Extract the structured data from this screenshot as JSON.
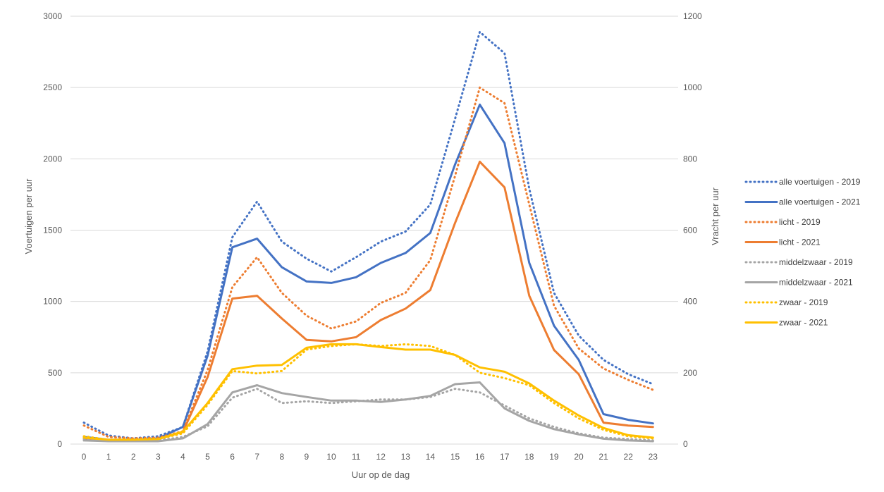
{
  "chart_data": {
    "type": "line",
    "xlabel": "Uur op de dag",
    "ylabel": "Voertuigen per uur",
    "y2label": "Vracht per uur",
    "x": [
      0,
      1,
      2,
      3,
      4,
      5,
      6,
      7,
      8,
      9,
      10,
      11,
      12,
      13,
      14,
      15,
      16,
      17,
      18,
      19,
      20,
      21,
      22,
      23
    ],
    "xticks": [
      "0",
      "1",
      "2",
      "3",
      "4",
      "5",
      "6",
      "7",
      "8",
      "9",
      "10",
      "11",
      "12",
      "13",
      "14",
      "15",
      "16",
      "17",
      "18",
      "19",
      "20",
      "21",
      "22",
      "23"
    ],
    "ylim": [
      0,
      3000
    ],
    "yticks": [
      "0",
      "500",
      "1000",
      "1500",
      "2000",
      "2500",
      "3000"
    ],
    "y2lim": [
      0,
      1200
    ],
    "y2ticks": [
      "0",
      "200",
      "400",
      "600",
      "800",
      "1000",
      "1200"
    ],
    "grid": true,
    "legend_position": "right",
    "series": [
      {
        "name": "alle voertuigen - 2019",
        "color": "#4472C4",
        "style": "dotted",
        "axis": "left",
        "values": [
          150,
          60,
          40,
          55,
          120,
          650,
          1450,
          1700,
          1420,
          1300,
          1210,
          1310,
          1420,
          1490,
          1680,
          2280,
          2890,
          2740,
          1790,
          1060,
          760,
          590,
          490,
          420
        ]
      },
      {
        "name": "alle voertuigen - 2021",
        "color": "#4472C4",
        "style": "solid",
        "axis": "left",
        "values": [
          50,
          30,
          30,
          40,
          120,
          620,
          1380,
          1440,
          1240,
          1140,
          1130,
          1170,
          1270,
          1340,
          1480,
          1960,
          2380,
          2110,
          1270,
          830,
          590,
          210,
          170,
          145
        ]
      },
      {
        "name": "licht - 2019",
        "color": "#ED7D31",
        "style": "dotted",
        "axis": "left",
        "values": [
          130,
          50,
          40,
          45,
          90,
          520,
          1100,
          1310,
          1060,
          900,
          810,
          860,
          990,
          1060,
          1290,
          1880,
          2500,
          2390,
          1680,
          970,
          670,
          530,
          450,
          380
        ]
      },
      {
        "name": "licht - 2021",
        "color": "#ED7D31",
        "style": "solid",
        "axis": "left",
        "values": [
          40,
          25,
          25,
          35,
          85,
          470,
          1020,
          1040,
          880,
          730,
          720,
          750,
          870,
          950,
          1080,
          1550,
          1980,
          1800,
          1040,
          660,
          490,
          150,
          130,
          120
        ]
      },
      {
        "name": "middelzwaar - 2019",
        "color": "#A5A5A5",
        "style": "dotted",
        "axis": "right",
        "values": [
          14,
          10,
          10,
          10,
          20,
          50,
          130,
          155,
          115,
          120,
          115,
          120,
          125,
          125,
          132,
          155,
          145,
          108,
          72,
          48,
          30,
          18,
          14,
          10
        ]
      },
      {
        "name": "middelzwaar - 2021",
        "color": "#A5A5A5",
        "style": "solid",
        "axis": "right",
        "values": [
          10,
          8,
          8,
          8,
          16,
          56,
          145,
          165,
          143,
          132,
          122,
          122,
          118,
          125,
          135,
          168,
          173,
          100,
          65,
          42,
          27,
          15,
          10,
          8
        ]
      },
      {
        "name": "zwaar - 2019",
        "color": "#FFC000",
        "style": "dotted",
        "axis": "right",
        "values": [
          22,
          12,
          12,
          14,
          30,
          110,
          205,
          198,
          205,
          265,
          275,
          280,
          275,
          280,
          275,
          250,
          200,
          185,
          165,
          115,
          72,
          40,
          22,
          16
        ]
      },
      {
        "name": "zwaar - 2021",
        "color": "#FFC000",
        "style": "solid",
        "axis": "right",
        "values": [
          18,
          12,
          12,
          14,
          35,
          115,
          210,
          220,
          222,
          270,
          280,
          280,
          272,
          265,
          265,
          250,
          215,
          203,
          170,
          122,
          80,
          45,
          25,
          18
        ]
      }
    ]
  }
}
